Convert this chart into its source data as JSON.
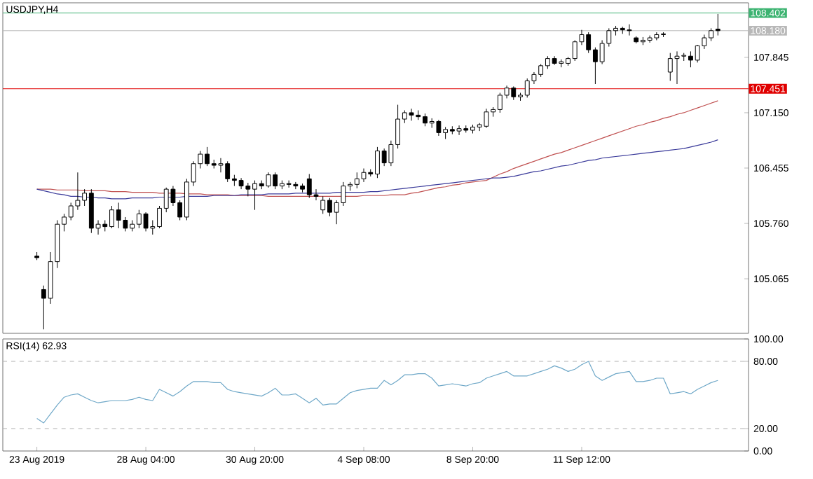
{
  "chart_data": [
    {
      "type": "candlestick",
      "title": "USDJPY,H4",
      "categories": [
        null,
        null,
        null,
        null,
        null,
        null,
        null,
        null,
        null,
        null,
        null,
        null,
        null,
        null,
        null,
        null,
        null,
        null,
        null,
        null,
        null,
        null,
        null,
        null,
        null,
        null,
        null,
        null,
        null,
        null,
        null,
        null,
        null,
        null,
        null,
        null,
        null,
        null,
        null,
        null,
        null,
        null,
        null,
        null,
        null,
        null,
        null,
        null,
        null,
        null,
        null,
        null,
        null,
        null,
        null,
        null,
        null,
        null,
        null,
        null,
        null,
        null,
        null,
        null,
        null,
        null,
        null,
        null,
        null,
        null,
        null,
        null,
        null,
        null,
        null,
        null,
        null,
        null,
        null,
        null,
        null,
        null,
        null,
        null,
        null,
        null,
        null,
        null,
        null,
        null,
        null,
        null,
        null,
        null,
        null,
        null,
        null,
        null,
        null,
        null,
        null
      ],
      "ohlc": [
        [
          105.35,
          105.4,
          105.3,
          105.33
        ],
        [
          104.93,
          104.98,
          104.43,
          104.82
        ],
        [
          104.82,
          105.4,
          104.75,
          105.28
        ],
        [
          105.28,
          105.8,
          105.2,
          105.75
        ],
        [
          105.75,
          105.88,
          105.66,
          105.84
        ],
        [
          105.84,
          106.02,
          105.8,
          105.98
        ],
        [
          105.98,
          106.4,
          105.93,
          106.05
        ],
        [
          106.05,
          106.19,
          105.98,
          106.14
        ],
        [
          106.14,
          106.19,
          105.64,
          105.7
        ],
        [
          105.7,
          105.8,
          105.62,
          105.75
        ],
        [
          105.75,
          105.8,
          105.66,
          105.72
        ],
        [
          105.72,
          105.98,
          105.7,
          105.93
        ],
        [
          105.93,
          106.02,
          105.7,
          105.8
        ],
        [
          105.8,
          105.84,
          105.66,
          105.7
        ],
        [
          105.7,
          105.8,
          105.66,
          105.75
        ],
        [
          105.75,
          105.93,
          105.7,
          105.88
        ],
        [
          105.88,
          105.9,
          105.66,
          105.7
        ],
        [
          105.7,
          105.8,
          105.62,
          105.72
        ],
        [
          105.72,
          105.98,
          105.7,
          105.95
        ],
        [
          105.95,
          106.21,
          105.9,
          106.19
        ],
        [
          106.19,
          106.23,
          105.98,
          106.02
        ],
        [
          106.02,
          106.05,
          105.8,
          105.84
        ],
        [
          105.84,
          106.32,
          105.8,
          106.28
        ],
        [
          106.28,
          106.54,
          106.23,
          106.51
        ],
        [
          106.51,
          106.67,
          106.45,
          106.63
        ],
        [
          106.63,
          106.72,
          106.48,
          106.51
        ],
        [
          106.51,
          106.56,
          106.45,
          106.49
        ],
        [
          106.49,
          106.58,
          106.4,
          106.51
        ],
        [
          106.51,
          106.54,
          106.28,
          106.32
        ],
        [
          106.32,
          106.37,
          106.23,
          106.3
        ],
        [
          106.3,
          106.33,
          106.19,
          106.23
        ],
        [
          106.23,
          106.27,
          106.1,
          106.19
        ],
        [
          106.19,
          106.3,
          105.93,
          106.26
        ],
        [
          106.26,
          106.3,
          106.19,
          106.23
        ],
        [
          106.23,
          106.4,
          106.21,
          106.37
        ],
        [
          106.37,
          106.4,
          106.19,
          106.23
        ],
        [
          106.23,
          106.3,
          106.19,
          106.26
        ],
        [
          106.26,
          106.3,
          106.21,
          106.25
        ],
        [
          106.25,
          106.28,
          106.19,
          106.23
        ],
        [
          106.23,
          106.26,
          106.15,
          106.19
        ],
        [
          106.32,
          106.38,
          106.08,
          106.12
        ],
        [
          106.12,
          106.19,
          106.05,
          106.1
        ],
        [
          105.93,
          106.1,
          105.88,
          106.05
        ],
        [
          106.05,
          106.08,
          105.85,
          105.9
        ],
        [
          105.9,
          106.05,
          105.75,
          106.02
        ],
        [
          106.02,
          106.28,
          105.98,
          106.23
        ],
        [
          106.23,
          106.28,
          106.17,
          106.25
        ],
        [
          106.25,
          106.4,
          106.2,
          106.32
        ],
        [
          106.32,
          106.45,
          106.28,
          106.4
        ],
        [
          106.4,
          106.44,
          106.35,
          106.38
        ],
        [
          106.38,
          106.72,
          106.33,
          106.67
        ],
        [
          106.67,
          106.7,
          106.48,
          106.52
        ],
        [
          106.52,
          106.8,
          106.48,
          106.75
        ],
        [
          106.75,
          107.25,
          106.7,
          107.07
        ],
        [
          107.07,
          107.18,
          107.02,
          107.15
        ],
        [
          107.15,
          107.2,
          107.05,
          107.12
        ],
        [
          107.12,
          107.18,
          107.06,
          107.1
        ],
        [
          107.1,
          107.14,
          106.98,
          107.02
        ],
        [
          107.02,
          107.08,
          106.96,
          107.04
        ],
        [
          107.04,
          107.06,
          106.86,
          106.9
        ],
        [
          106.9,
          106.97,
          106.82,
          106.94
        ],
        [
          106.94,
          106.98,
          106.88,
          106.92
        ],
        [
          106.92,
          106.99,
          106.87,
          106.95
        ],
        [
          106.95,
          106.99,
          106.9,
          106.93
        ],
        [
          106.93,
          107.0,
          106.89,
          106.97
        ],
        [
          106.97,
          107.02,
          106.92,
          107.0
        ],
        [
          106.98,
          107.2,
          106.96,
          107.16
        ],
        [
          107.16,
          107.22,
          107.1,
          107.19
        ],
        [
          107.19,
          107.4,
          107.15,
          107.37
        ],
        [
          107.37,
          107.49,
          107.33,
          107.46
        ],
        [
          107.46,
          107.48,
          107.31,
          107.35
        ],
        [
          107.35,
          107.4,
          107.3,
          107.37
        ],
        [
          107.37,
          107.58,
          107.34,
          107.55
        ],
        [
          107.55,
          107.66,
          107.51,
          107.63
        ],
        [
          107.63,
          107.76,
          107.6,
          107.74
        ],
        [
          107.74,
          107.86,
          107.7,
          107.83
        ],
        [
          107.83,
          107.86,
          107.75,
          107.77
        ],
        [
          107.77,
          107.82,
          107.72,
          107.79
        ],
        [
          107.77,
          107.85,
          107.74,
          107.83
        ],
        [
          107.83,
          108.06,
          107.8,
          108.04
        ],
        [
          108.04,
          108.19,
          108.0,
          108.13
        ],
        [
          108.13,
          108.16,
          107.9,
          107.94
        ],
        [
          107.94,
          107.97,
          107.51,
          107.79
        ],
        [
          107.79,
          108.06,
          107.76,
          108.02
        ],
        [
          108.02,
          108.21,
          107.98,
          108.18
        ],
        [
          108.18,
          108.24,
          108.12,
          108.21
        ],
        [
          108.21,
          108.23,
          108.14,
          108.19
        ],
        [
          108.19,
          108.26,
          108.12,
          108.18
        ],
        [
          108.09,
          108.11,
          108.02,
          108.04
        ],
        [
          108.04,
          108.1,
          108.0,
          108.06
        ],
        [
          108.06,
          108.12,
          108.03,
          108.09
        ],
        [
          108.09,
          108.16,
          108.06,
          108.13
        ],
        [
          108.13,
          108.16,
          108.1,
          108.14
        ],
        [
          107.66,
          107.9,
          107.55,
          107.83
        ],
        [
          107.83,
          107.92,
          107.51,
          107.86
        ],
        [
          107.86,
          107.9,
          107.8,
          107.87
        ],
        [
          107.86,
          107.92,
          107.72,
          107.81
        ],
        [
          107.81,
          108.0,
          107.78,
          107.99
        ],
        [
          107.99,
          108.13,
          107.95,
          108.09
        ],
        [
          108.09,
          108.21,
          108.05,
          108.18
        ],
        [
          108.2,
          108.39,
          108.12,
          108.18
        ]
      ],
      "series": [
        {
          "type": "line",
          "color": "#c05050",
          "values": [
            106.19,
            106.19,
            106.19,
            106.18,
            106.18,
            106.18,
            106.18,
            106.17,
            106.17,
            106.17,
            106.17,
            106.16,
            106.16,
            106.16,
            106.15,
            106.15,
            106.15,
            106.15,
            106.14,
            106.14,
            106.14,
            106.14,
            106.13,
            106.13,
            106.13,
            106.12,
            106.12,
            106.12,
            106.12,
            106.11,
            106.11,
            106.11,
            106.11,
            106.11,
            106.1,
            106.1,
            106.1,
            106.1,
            106.1,
            106.1,
            106.1,
            106.1,
            106.1,
            106.1,
            106.1,
            106.1,
            106.1,
            106.1,
            106.11,
            106.11,
            106.11,
            106.11,
            106.12,
            106.12,
            106.12,
            106.14,
            106.15,
            106.17,
            106.19,
            106.21,
            106.22,
            106.24,
            106.25,
            106.27,
            106.28,
            106.29,
            106.3,
            106.34,
            106.38,
            106.41,
            106.45,
            106.48,
            106.51,
            106.54,
            106.57,
            106.6,
            106.63,
            106.65,
            106.68,
            106.71,
            106.74,
            106.77,
            106.8,
            106.83,
            106.86,
            106.89,
            106.92,
            106.95,
            106.98,
            107.0,
            107.03,
            107.05,
            107.08,
            107.1,
            107.13,
            107.15,
            107.18,
            107.21,
            107.24,
            107.27,
            107.3
          ]
        },
        {
          "type": "line",
          "color": "#3a3a9a",
          "values": [
            106.19,
            106.17,
            106.15,
            106.13,
            106.12,
            106.1,
            106.1,
            106.09,
            106.09,
            106.08,
            106.08,
            106.07,
            106.07,
            106.07,
            106.08,
            106.08,
            106.08,
            106.08,
            106.09,
            106.09,
            106.09,
            106.09,
            106.1,
            106.1,
            106.1,
            106.1,
            106.11,
            106.11,
            106.11,
            106.11,
            106.12,
            106.12,
            106.12,
            106.12,
            106.13,
            106.13,
            106.13,
            106.13,
            106.14,
            106.14,
            106.14,
            106.14,
            106.14,
            106.14,
            106.15,
            106.15,
            106.15,
            106.15,
            106.15,
            106.16,
            106.16,
            106.17,
            106.18,
            106.19,
            106.2,
            106.21,
            106.22,
            106.23,
            106.24,
            106.25,
            106.26,
            106.27,
            106.28,
            106.29,
            106.3,
            106.31,
            106.32,
            106.33,
            106.33,
            106.34,
            106.35,
            106.37,
            106.39,
            106.41,
            106.42,
            106.44,
            106.46,
            106.48,
            106.49,
            106.51,
            106.53,
            106.55,
            106.56,
            106.58,
            106.59,
            106.6,
            106.61,
            106.62,
            106.63,
            106.64,
            106.65,
            106.66,
            106.67,
            106.68,
            106.69,
            106.7,
            106.72,
            106.74,
            106.76,
            106.78,
            106.81
          ]
        }
      ],
      "ylim": [
        104.38,
        108.53
      ],
      "yticks": [
        {
          "value": 105.065,
          "label": "105.065"
        },
        {
          "value": 105.76,
          "label": "105.760"
        },
        {
          "value": 106.455,
          "label": "106.455"
        },
        {
          "value": 107.15,
          "label": "107.150"
        },
        {
          "value": 107.845,
          "label": "107.845"
        }
      ],
      "tick_labels": "y",
      "ref_lines": [
        {
          "axis": "y",
          "value": 108.402,
          "label": "108.402",
          "color": "#3cb371"
        },
        {
          "axis": "y",
          "value": 108.18,
          "label": "108.180",
          "color": "#b8b8b8"
        },
        {
          "axis": "y",
          "value": 107.451,
          "label": "107.451",
          "color": "#e00000"
        }
      ]
    },
    {
      "type": "line",
      "title": "RSI(14) 62.93",
      "categories": [
        "23 Aug 2019",
        null,
        null,
        null,
        null,
        null,
        null,
        null,
        null,
        null,
        null,
        null,
        null,
        null,
        null,
        null,
        "28 Aug 04:00",
        null,
        null,
        null,
        null,
        null,
        null,
        null,
        null,
        null,
        null,
        null,
        null,
        null,
        null,
        null,
        "30 Aug 20:00",
        null,
        null,
        null,
        null,
        null,
        null,
        null,
        null,
        null,
        null,
        null,
        null,
        null,
        null,
        null,
        "4 Sep 08:00",
        null,
        null,
        null,
        null,
        null,
        null,
        null,
        null,
        null,
        null,
        null,
        null,
        null,
        null,
        null,
        "8 Sep 20:00",
        null,
        null,
        null,
        null,
        null,
        null,
        null,
        null,
        null,
        null,
        null,
        null,
        null,
        null,
        null,
        "11 Sep 12:00",
        null,
        null,
        null,
        null,
        null,
        null,
        null,
        null,
        null,
        null,
        null,
        null,
        null,
        null,
        null,
        null,
        null,
        null,
        null,
        null
      ],
      "series": [
        {
          "color": "#6fa8c8",
          "values": [
            29,
            25,
            33,
            41,
            48,
            50,
            51,
            48,
            45,
            43,
            44,
            45,
            45,
            45,
            46,
            48,
            46,
            45,
            55,
            52,
            49,
            53,
            58,
            62,
            62,
            62,
            61,
            61,
            55,
            53,
            52,
            51,
            50,
            49,
            52,
            56,
            50,
            50,
            51,
            47,
            43,
            47,
            41,
            42,
            42,
            47,
            52,
            54,
            55,
            56,
            56,
            63,
            59,
            63,
            68,
            68,
            69,
            69,
            65,
            58,
            59,
            60,
            59,
            58,
            60,
            61,
            65,
            67,
            69,
            71,
            67,
            67,
            67,
            69,
            71,
            73,
            76,
            74,
            71,
            73,
            77,
            80,
            67,
            63,
            66,
            69,
            70,
            71,
            62,
            62,
            63,
            65,
            65,
            51,
            52,
            53,
            51,
            55,
            58,
            61,
            63
          ]
        }
      ],
      "ylim": [
        0,
        100
      ],
      "yticks": [
        {
          "value": 0,
          "label": "0.00"
        },
        {
          "value": 20,
          "label": "20.00"
        },
        {
          "value": 80,
          "label": "80.00"
        },
        {
          "value": 100,
          "label": "100.00"
        }
      ],
      "ref_lines": [
        {
          "axis": "y",
          "value": 20,
          "color": "#b0b0b0",
          "line_style": "dashed"
        },
        {
          "axis": "y",
          "value": 80,
          "color": "#b0b0b0",
          "line_style": "dashed"
        }
      ]
    }
  ]
}
